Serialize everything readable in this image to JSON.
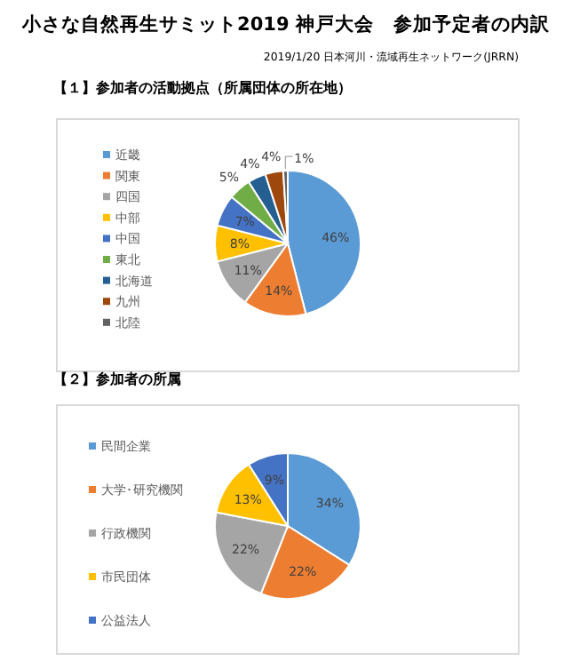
{
  "chart_data": [
    {
      "type": "pie",
      "title": "【１】参加者の活動拠点（所属団体の所在地）",
      "annotations": [
        "小さな自然再生サミット2019 神戸大会　参加予定者の内訳",
        "2019/1/20 日本河川・流域再生ネットワーク(JRRN)"
      ],
      "categories": [
        "近畿",
        "関東",
        "四国",
        "中部",
        "中国",
        "東北",
        "北海道",
        "九州",
        "北陸"
      ],
      "values": [
        46,
        14,
        11,
        8,
        7,
        5,
        4,
        4,
        1
      ],
      "colors": [
        "#5b9bd5",
        "#ed7d31",
        "#a5a5a5",
        "#ffc000",
        "#4472c4",
        "#70ad47",
        "#255e91",
        "#9e480e",
        "#636363"
      ],
      "value_labels": [
        "46%",
        "14%",
        "11%",
        "8%",
        "7%",
        "5%",
        "4%",
        "4%",
        "1%"
      ],
      "legend": "left"
    },
    {
      "type": "pie",
      "title": "【２】参加者の所属",
      "categories": [
        "民間企業",
        "大学･研究機関",
        "行政機関",
        "市民団体",
        "公益法人"
      ],
      "values": [
        34,
        22,
        22,
        13,
        9
      ],
      "colors": [
        "#5b9bd5",
        "#ed7d31",
        "#a5a5a5",
        "#ffc000",
        "#4472c4"
      ],
      "value_labels": [
        "34%",
        "22%",
        "22%",
        "13%",
        "9%"
      ],
      "legend": "left"
    }
  ]
}
